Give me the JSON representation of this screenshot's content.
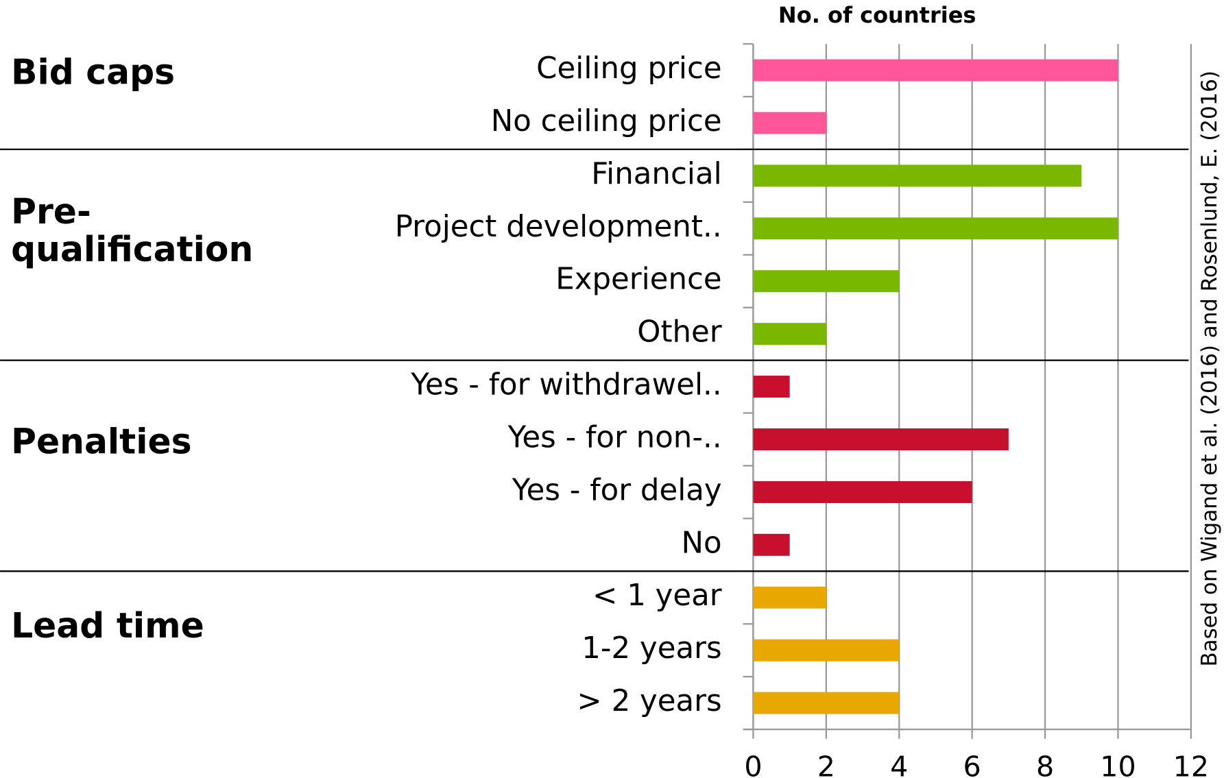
{
  "chart_data": {
    "type": "bar",
    "orientation": "horizontal",
    "xlabel": "No. of countries",
    "source": "Based on  Wigand et al. (2016) and Rosenlund, E. (2016)",
    "groups": [
      {
        "name": "Bid caps",
        "color": "#ff5599",
        "categories": [
          "Ceiling price",
          "No ceiling price"
        ],
        "values": [
          10,
          2
        ]
      },
      {
        "name": "Pre-\nqualification",
        "color": "#7ab800",
        "categories": [
          "Financial",
          "Project development..",
          "Experience",
          "Other"
        ],
        "values": [
          9,
          10,
          4,
          2
        ]
      },
      {
        "name": "Penalties",
        "color": "#c8102e",
        "categories": [
          "Yes - for withdrawel..",
          "Yes - for non-..",
          "Yes - for delay",
          "No"
        ],
        "values": [
          1,
          7,
          6,
          1
        ]
      },
      {
        "name": "Lead time",
        "color": "#e8a800",
        "categories": [
          "< 1 year",
          "1-2 years",
          "> 2 years"
        ],
        "values": [
          2,
          4,
          4
        ]
      }
    ],
    "xlim": [
      0,
      12
    ],
    "xticks": [
      0,
      2,
      4,
      6,
      8,
      10,
      12
    ],
    "grid": true
  }
}
